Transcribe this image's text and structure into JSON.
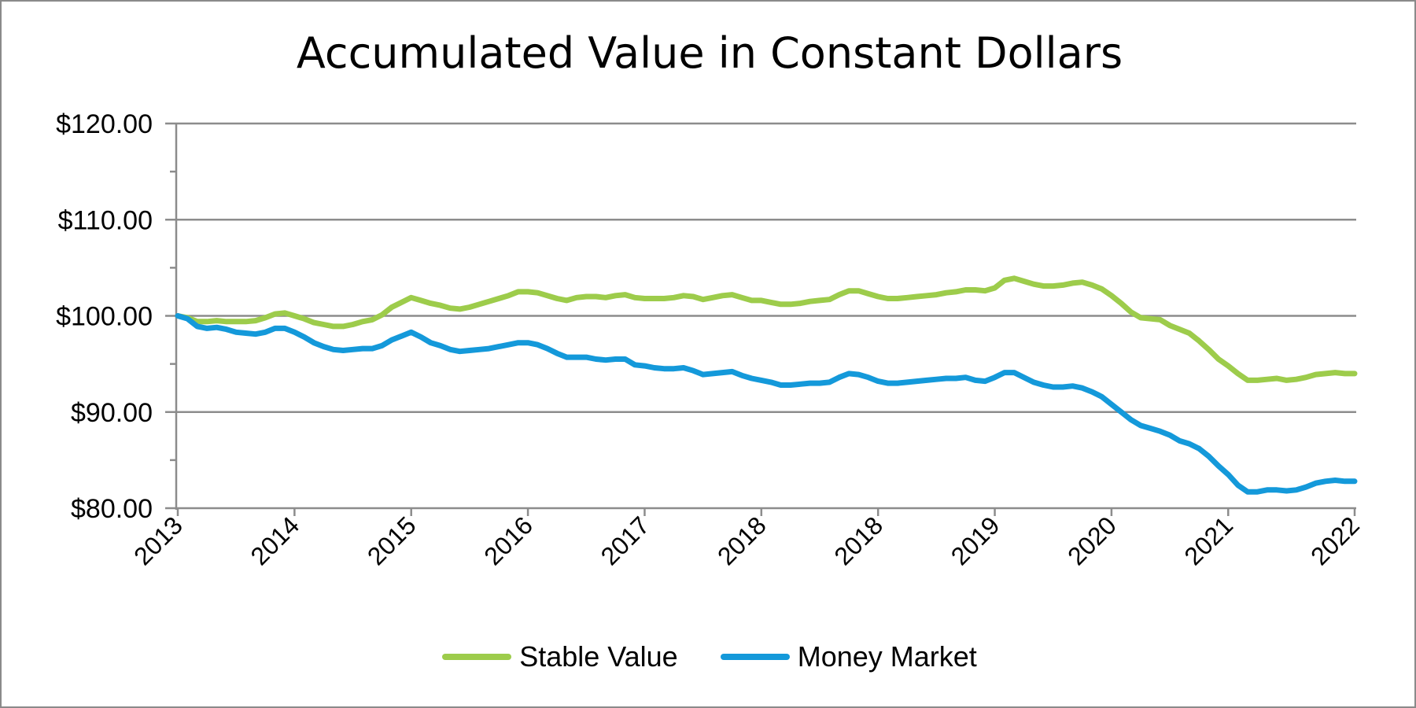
{
  "chart_data": {
    "type": "line",
    "title": "Accumulated Value in Constant Dollars",
    "xlabel": "",
    "ylabel": "",
    "x_tick_labels": [
      "2013",
      "2014",
      "2015",
      "2016",
      "2017",
      "2018",
      "2018",
      "2019",
      "2020",
      "2021",
      "2022"
    ],
    "y_tick_labels": [
      "$80.00",
      "$90.00",
      "$100.00",
      "$110.00",
      "$120.00"
    ],
    "y_ticks": [
      80,
      90,
      100,
      110,
      120
    ],
    "ylim": [
      80,
      120
    ],
    "xlim": [
      0,
      121
    ],
    "grid": true,
    "legend_position": "bottom",
    "colors": {
      "stable_value": "#9dcc4b",
      "money_market": "#1499da",
      "grid": "#8c8c8c"
    },
    "x_month_index": [
      0,
      1,
      2,
      3,
      4,
      5,
      6,
      7,
      8,
      9,
      10,
      11,
      12,
      13,
      14,
      15,
      16,
      17,
      18,
      19,
      20,
      21,
      22,
      23,
      24,
      25,
      26,
      27,
      28,
      29,
      30,
      31,
      32,
      33,
      34,
      35,
      36,
      37,
      38,
      39,
      40,
      41,
      42,
      43,
      44,
      45,
      46,
      47,
      48,
      49,
      50,
      51,
      52,
      53,
      54,
      55,
      56,
      57,
      58,
      59,
      60,
      61,
      62,
      63,
      64,
      65,
      66,
      67,
      68,
      69,
      70,
      71,
      72,
      73,
      74,
      75,
      76,
      77,
      78,
      79,
      80,
      81,
      82,
      83,
      84,
      85,
      86,
      87,
      88,
      89,
      90,
      91,
      92,
      93,
      94,
      95,
      96,
      97,
      98,
      99,
      100,
      101,
      102,
      103,
      104,
      105,
      106,
      107,
      108,
      109,
      110,
      111,
      112,
      113,
      114,
      115,
      116,
      117,
      118,
      119,
      120,
      121
    ],
    "series": [
      {
        "name": "Stable Value",
        "values": [
          100.0,
          99.8,
          99.4,
          99.4,
          99.5,
          99.4,
          99.4,
          99.4,
          99.5,
          99.8,
          100.2,
          100.3,
          100.0,
          99.7,
          99.3,
          99.1,
          98.9,
          98.9,
          99.1,
          99.4,
          99.6,
          100.1,
          100.9,
          101.4,
          101.9,
          101.6,
          101.3,
          101.1,
          100.8,
          100.7,
          100.9,
          101.2,
          101.5,
          101.8,
          102.1,
          102.5,
          102.5,
          102.4,
          102.1,
          101.8,
          101.6,
          101.9,
          102.0,
          102.0,
          101.9,
          102.1,
          102.2,
          101.9,
          101.8,
          101.8,
          101.8,
          101.9,
          102.1,
          102.0,
          101.7,
          101.9,
          102.1,
          102.2,
          101.9,
          101.6,
          101.6,
          101.4,
          101.2,
          101.2,
          101.3,
          101.5,
          101.6,
          101.7,
          102.2,
          102.6,
          102.6,
          102.3,
          102.0,
          101.8,
          101.8,
          101.9,
          102.0,
          102.1,
          102.2,
          102.4,
          102.5,
          102.7,
          102.7,
          102.6,
          102.9,
          103.7,
          103.9,
          103.6,
          103.3,
          103.1,
          103.1,
          103.2,
          103.4,
          103.5,
          103.2,
          102.8,
          102.1,
          101.3,
          100.4,
          99.8,
          99.7,
          99.6,
          99.0,
          98.6,
          98.2,
          97.4,
          96.5,
          95.5,
          94.8,
          94.0,
          93.3,
          93.3,
          93.4,
          93.5,
          93.3,
          93.4,
          93.6,
          93.9,
          94.0,
          94.1,
          94.0,
          94.0
        ]
      },
      {
        "name": "Money Market",
        "values": [
          100.0,
          99.7,
          98.9,
          98.7,
          98.8,
          98.6,
          98.3,
          98.2,
          98.1,
          98.3,
          98.7,
          98.7,
          98.3,
          97.8,
          97.2,
          96.8,
          96.5,
          96.4,
          96.5,
          96.6,
          96.6,
          96.9,
          97.5,
          97.9,
          98.3,
          97.8,
          97.2,
          96.9,
          96.5,
          96.3,
          96.4,
          96.5,
          96.6,
          96.8,
          97.0,
          97.2,
          97.2,
          97.0,
          96.6,
          96.1,
          95.7,
          95.7,
          95.7,
          95.5,
          95.4,
          95.5,
          95.5,
          94.9,
          94.8,
          94.6,
          94.5,
          94.5,
          94.6,
          94.3,
          93.9,
          94.0,
          94.1,
          94.2,
          93.8,
          93.5,
          93.3,
          93.1,
          92.8,
          92.8,
          92.9,
          93.0,
          93.0,
          93.1,
          93.6,
          94.0,
          93.9,
          93.6,
          93.2,
          93.0,
          93.0,
          93.1,
          93.2,
          93.3,
          93.4,
          93.5,
          93.5,
          93.6,
          93.3,
          93.2,
          93.6,
          94.1,
          94.1,
          93.6,
          93.1,
          92.8,
          92.6,
          92.6,
          92.7,
          92.5,
          92.1,
          91.6,
          90.8,
          90.0,
          89.2,
          88.6,
          88.3,
          88.0,
          87.6,
          87.0,
          86.7,
          86.2,
          85.4,
          84.4,
          83.5,
          82.4,
          81.7,
          81.7,
          81.9,
          81.9,
          81.8,
          81.9,
          82.2,
          82.6,
          82.8,
          82.9,
          82.8,
          82.8
        ]
      }
    ]
  }
}
